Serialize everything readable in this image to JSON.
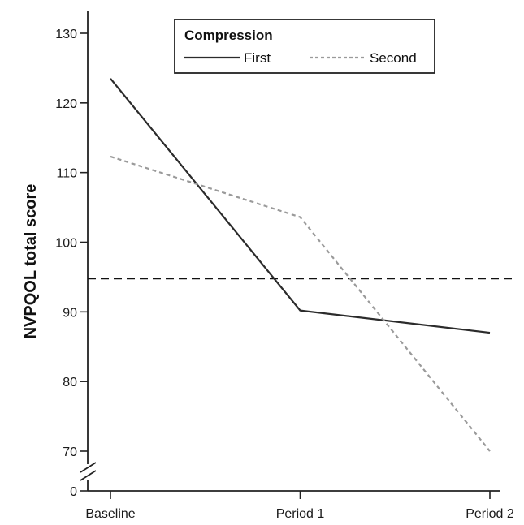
{
  "chart_data": {
    "type": "line",
    "title": "",
    "xlabel": "",
    "ylabel": "NVPQOL total score",
    "categories": [
      "Baseline",
      "Period 1",
      "Period 2"
    ],
    "yticks": [
      0,
      70,
      80,
      90,
      100,
      110,
      120,
      130
    ],
    "ylim": [
      67,
      133
    ],
    "axis_break": true,
    "grid": false,
    "legend": {
      "title": "Compression",
      "placement": "top-right",
      "entries": [
        "First",
        "Second"
      ]
    },
    "series": [
      {
        "name": "First",
        "values": [
          123.5,
          90.2,
          87.0
        ],
        "color": "#2b2b2b",
        "style": "solid"
      },
      {
        "name": "Second",
        "values": [
          112.3,
          103.6,
          70.0
        ],
        "color": "#9a9a9a",
        "style": "dashed"
      }
    ],
    "reference_line": {
      "value": 94.8,
      "color": "#111111",
      "style": "dashed"
    }
  }
}
